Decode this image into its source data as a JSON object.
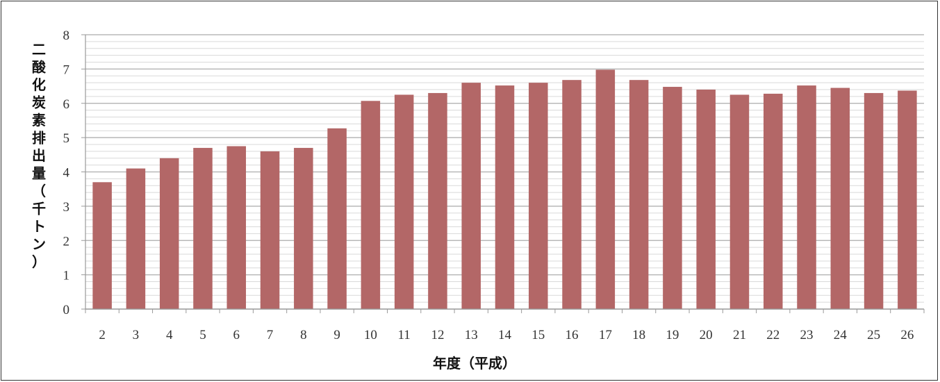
{
  "chart_data": {
    "type": "bar",
    "title": "",
    "xlabel": "年度（平成）",
    "ylabel": "二酸化炭素排出量（千トン）",
    "ylim": [
      0,
      8
    ],
    "yticks": [
      "0",
      "1",
      "2",
      "3",
      "4",
      "5",
      "6",
      "7",
      "8"
    ],
    "grid": true,
    "legend": "none",
    "categories": [
      "2",
      "3",
      "4",
      "5",
      "6",
      "7",
      "8",
      "9",
      "10",
      "11",
      "12",
      "13",
      "14",
      "15",
      "16",
      "17",
      "18",
      "19",
      "20",
      "21",
      "22",
      "23",
      "24",
      "25",
      "26"
    ],
    "values": [
      3.7,
      4.1,
      4.4,
      4.7,
      4.75,
      4.6,
      4.7,
      5.27,
      6.07,
      6.25,
      6.3,
      6.6,
      6.52,
      6.6,
      6.68,
      6.98,
      6.68,
      6.48,
      6.4,
      6.25,
      6.28,
      6.52,
      6.45,
      6.3,
      6.37
    ],
    "colors": {
      "bar": "#b36767",
      "grid_major": "#b8b8b8",
      "grid_minor": "#d9d9d9",
      "axis": "#999999"
    }
  }
}
